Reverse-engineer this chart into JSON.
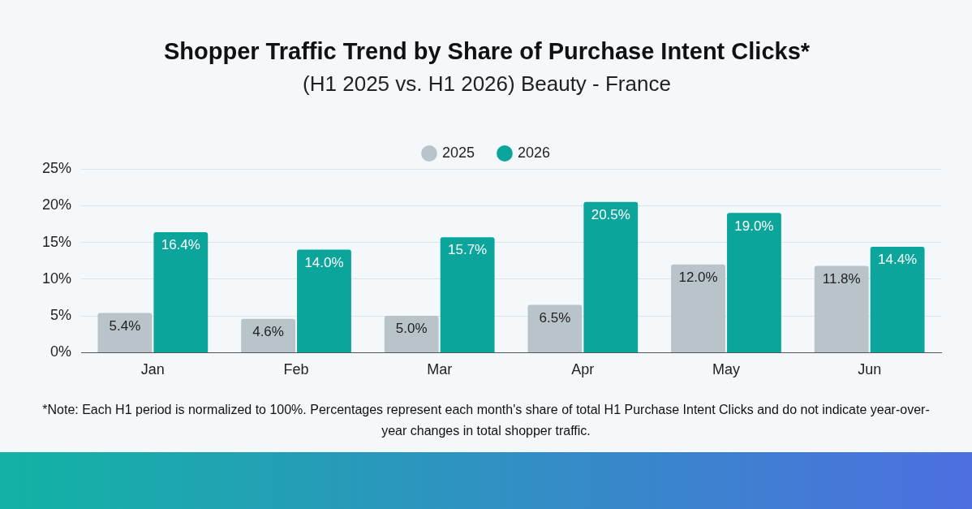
{
  "chart_data": {
    "type": "bar",
    "title": "Shopper Traffic Trend by Share of Purchase Intent Clicks*",
    "subtitle": "(H1 2025 vs. H1 2026) Beauty - France",
    "categories": [
      "Jan",
      "Feb",
      "Mar",
      "Apr",
      "May",
      "Jun"
    ],
    "series": [
      {
        "name": "2025",
        "color": "#b9c3ca",
        "values": [
          5.4,
          4.6,
          5.0,
          6.5,
          12.0,
          11.8
        ],
        "value_labels": [
          "5.4%",
          "4.6%",
          "5.0%",
          "6.5%",
          "12.0%",
          "11.8%"
        ]
      },
      {
        "name": "2026",
        "color": "#0ba59c",
        "values": [
          16.4,
          14.0,
          15.7,
          20.5,
          19.0,
          14.4
        ],
        "value_labels": [
          "16.4%",
          "14.0%",
          "15.7%",
          "20.5%",
          "19.0%",
          "14.4%"
        ]
      }
    ],
    "ylim": [
      0,
      25
    ],
    "yticks": [
      {
        "value": 0,
        "label": "0%"
      },
      {
        "value": 5,
        "label": "5%"
      },
      {
        "value": 10,
        "label": "10%"
      },
      {
        "value": 15,
        "label": "15%"
      },
      {
        "value": 20,
        "label": "20%"
      },
      {
        "value": 25,
        "label": "25%"
      }
    ],
    "grid": "y",
    "legend": "top",
    "annotations": [
      "*Note: Each H1 period is normalized to 100%. Percentages represent each month's share of total H1 Purchase Intent Clicks and do not indicate year-over-year changes in total shopper traffic."
    ]
  }
}
